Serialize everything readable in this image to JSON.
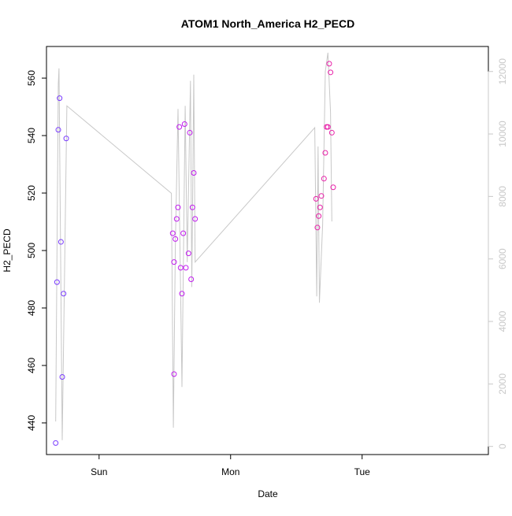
{
  "chart_data": {
    "type": "scatter",
    "title": "ATOM1 North_America H2_PECD",
    "xlabel": "Date",
    "ylabel": "H2_PECD",
    "x_ticks": [
      "Sun",
      "Mon",
      "Tue"
    ],
    "x_range_days": [
      -0.4,
      2.96
    ],
    "ylim": [
      429,
      571
    ],
    "y_ticks": [
      440,
      460,
      480,
      500,
      520,
      540,
      560
    ],
    "y2lim": [
      -260,
      12800
    ],
    "y2_ticks": [
      0,
      2000,
      4000,
      6000,
      8000,
      10000,
      12000
    ],
    "points": [
      {
        "x": -0.33,
        "y": 433,
        "color": "#7a3cff"
      },
      {
        "x": -0.32,
        "y": 489,
        "color": "#7a3cff"
      },
      {
        "x": -0.31,
        "y": 542,
        "color": "#7a3cff"
      },
      {
        "x": -0.3,
        "y": 553,
        "color": "#7a3cff"
      },
      {
        "x": -0.29,
        "y": 503,
        "color": "#7a3cff"
      },
      {
        "x": -0.28,
        "y": 456,
        "color": "#7a3cff"
      },
      {
        "x": -0.27,
        "y": 485,
        "color": "#7a3cff"
      },
      {
        "x": -0.25,
        "y": 539,
        "color": "#7a3cff"
      },
      {
        "x": 0.56,
        "y": 506,
        "color": "#c21cf0"
      },
      {
        "x": 0.57,
        "y": 496,
        "color": "#c21cf0"
      },
      {
        "x": 0.57,
        "y": 457,
        "color": "#c21cf0"
      },
      {
        "x": 0.58,
        "y": 504,
        "color": "#c21cf0"
      },
      {
        "x": 0.59,
        "y": 511,
        "color": "#c21cf0"
      },
      {
        "x": 0.6,
        "y": 515,
        "color": "#c21cf0"
      },
      {
        "x": 0.61,
        "y": 543,
        "color": "#c21cf0"
      },
      {
        "x": 0.62,
        "y": 494,
        "color": "#c21cf0"
      },
      {
        "x": 0.63,
        "y": 485,
        "color": "#c21cf0"
      },
      {
        "x": 0.64,
        "y": 506,
        "color": "#c21cf0"
      },
      {
        "x": 0.65,
        "y": 544,
        "color": "#c21cf0"
      },
      {
        "x": 0.66,
        "y": 494,
        "color": "#c21cf0"
      },
      {
        "x": 0.68,
        "y": 499,
        "color": "#c21cf0"
      },
      {
        "x": 0.69,
        "y": 541,
        "color": "#c21cf0"
      },
      {
        "x": 0.7,
        "y": 490,
        "color": "#c21cf0"
      },
      {
        "x": 0.71,
        "y": 515,
        "color": "#c21cf0"
      },
      {
        "x": 0.72,
        "y": 527,
        "color": "#c21cf0"
      },
      {
        "x": 0.73,
        "y": 511,
        "color": "#c21cf0"
      },
      {
        "x": 1.65,
        "y": 518,
        "color": "#e81fa8"
      },
      {
        "x": 1.66,
        "y": 508,
        "color": "#e81fa8"
      },
      {
        "x": 1.67,
        "y": 512,
        "color": "#e81fa8"
      },
      {
        "x": 1.68,
        "y": 515,
        "color": "#e81fa8"
      },
      {
        "x": 1.69,
        "y": 519,
        "color": "#e81fa8"
      },
      {
        "x": 1.71,
        "y": 525,
        "color": "#e81fa8"
      },
      {
        "x": 1.72,
        "y": 534,
        "color": "#e81fa8"
      },
      {
        "x": 1.73,
        "y": 543,
        "color": "#e81fa8"
      },
      {
        "x": 1.74,
        "y": 543,
        "color": "#e81fa8"
      },
      {
        "x": 1.75,
        "y": 565,
        "color": "#e81fa8"
      },
      {
        "x": 1.76,
        "y": 562,
        "color": "#e81fa8"
      },
      {
        "x": 1.77,
        "y": 541,
        "color": "#e81fa8"
      },
      {
        "x": 1.78,
        "y": 522,
        "color": "#e81fa8"
      }
    ],
    "secondary_line": {
      "axis": "right",
      "color": "#c8c8c8",
      "points": [
        [
          -0.33,
          800
        ],
        [
          -0.31,
          11600
        ],
        [
          -0.305,
          12100
        ],
        [
          -0.28,
          200
        ],
        [
          -0.245,
          10900
        ],
        [
          0.55,
          8100
        ],
        [
          0.565,
          600
        ],
        [
          0.58,
          6400
        ],
        [
          0.6,
          10800
        ],
        [
          0.63,
          1900
        ],
        [
          0.655,
          10900
        ],
        [
          0.67,
          5900
        ],
        [
          0.695,
          11700
        ],
        [
          0.705,
          5100
        ],
        [
          0.72,
          11900
        ],
        [
          0.73,
          5900
        ],
        [
          1.64,
          10200
        ],
        [
          1.655,
          4800
        ],
        [
          1.665,
          9600
        ],
        [
          1.675,
          4600
        ],
        [
          1.7,
          7100
        ],
        [
          1.72,
          12000
        ],
        [
          1.74,
          12600
        ],
        [
          1.76,
          10700
        ],
        [
          1.77,
          7200
        ]
      ]
    }
  }
}
